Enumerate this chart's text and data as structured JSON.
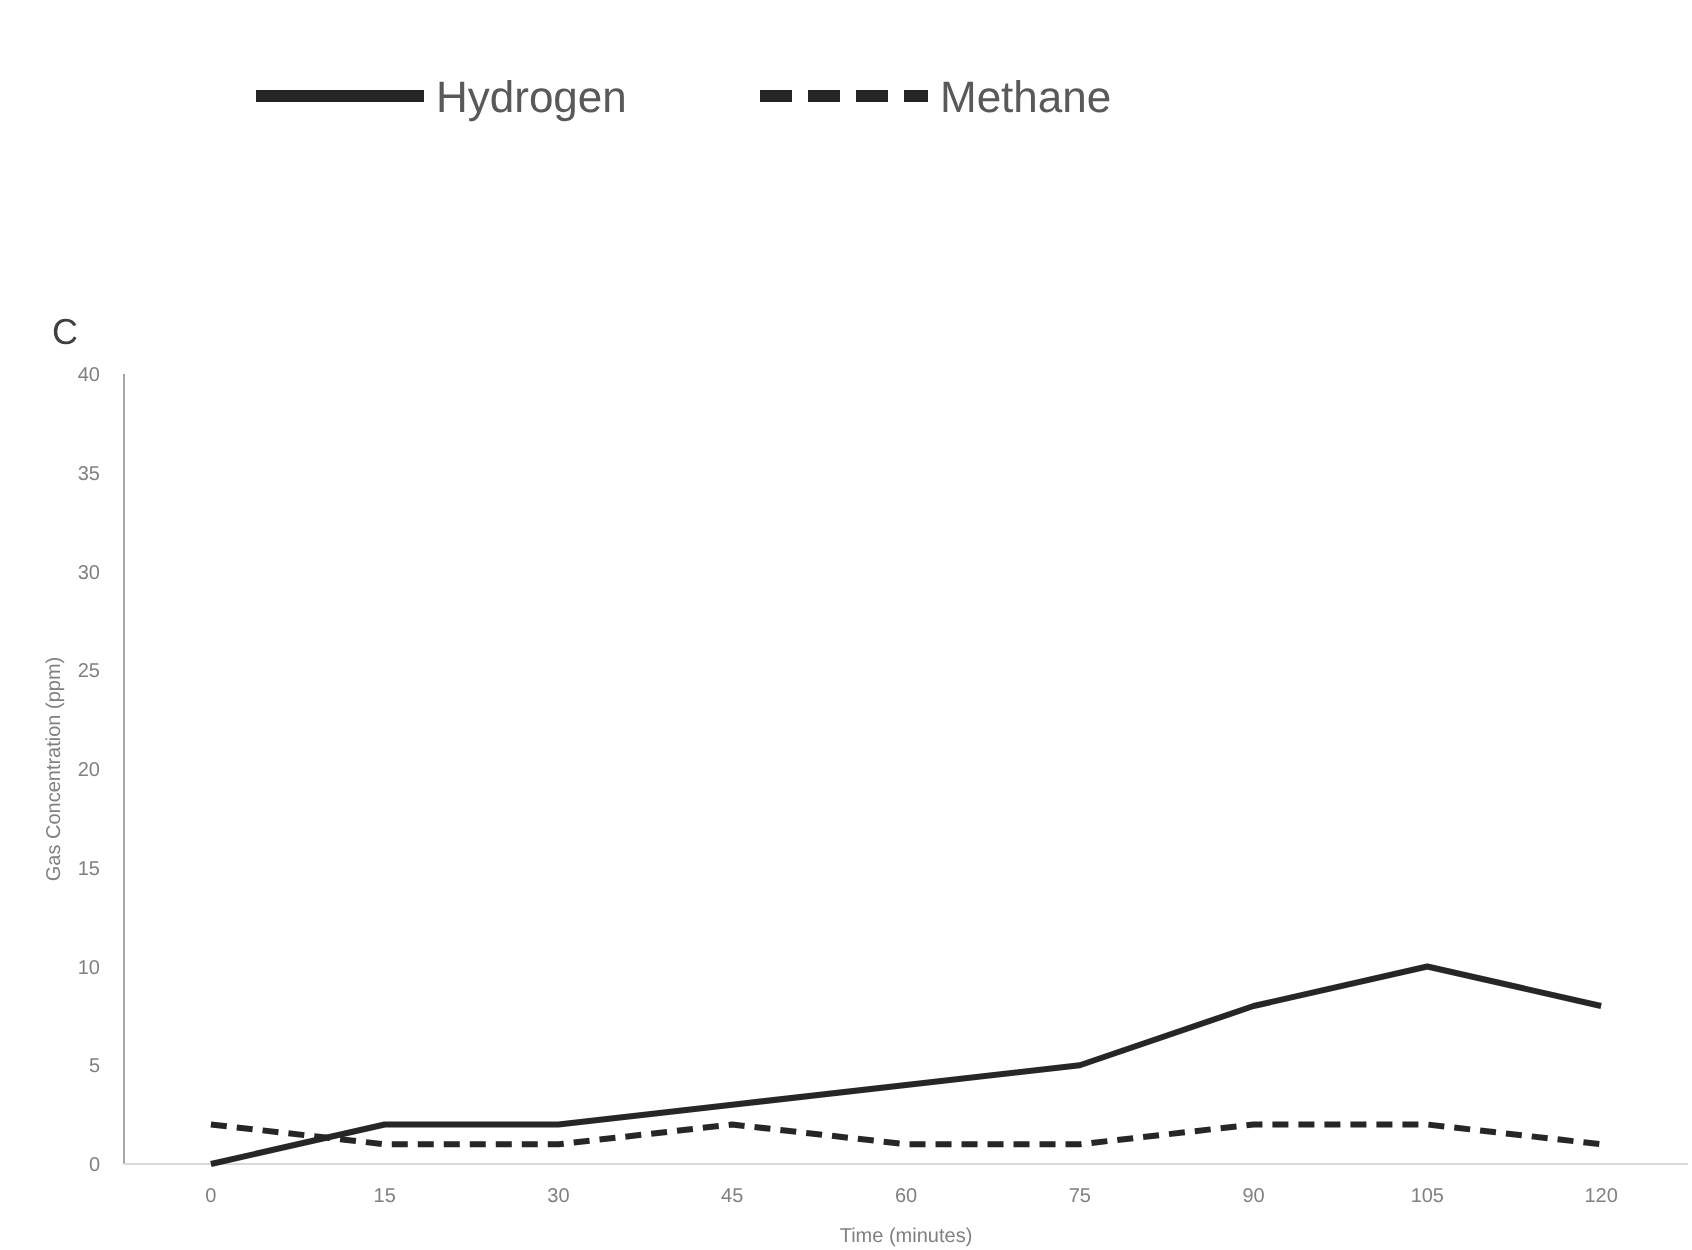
{
  "chart_data": {
    "type": "line",
    "title": "C",
    "xlabel": "Time (minutes)",
    "ylabel": "Gas Concentration (ppm)",
    "categories": [
      "0",
      "15",
      "30",
      "45",
      "60",
      "75",
      "90",
      "105",
      "120"
    ],
    "series": [
      {
        "name": "Hydrogen",
        "color": "#262626",
        "values": [
          0,
          2,
          2,
          3,
          4,
          5,
          8,
          10,
          8
        ],
        "line_style": "solid"
      },
      {
        "name": "Methane",
        "color": "#262626",
        "values": [
          2,
          1,
          1,
          2,
          1,
          1,
          2,
          2,
          1
        ],
        "line_style": "dashed"
      }
    ],
    "ylim": [
      0,
      40
    ],
    "yticks": [
      0,
      5,
      10,
      15,
      20,
      25,
      30,
      35,
      40
    ],
    "grid": false,
    "legend": "top",
    "marker": "none"
  }
}
